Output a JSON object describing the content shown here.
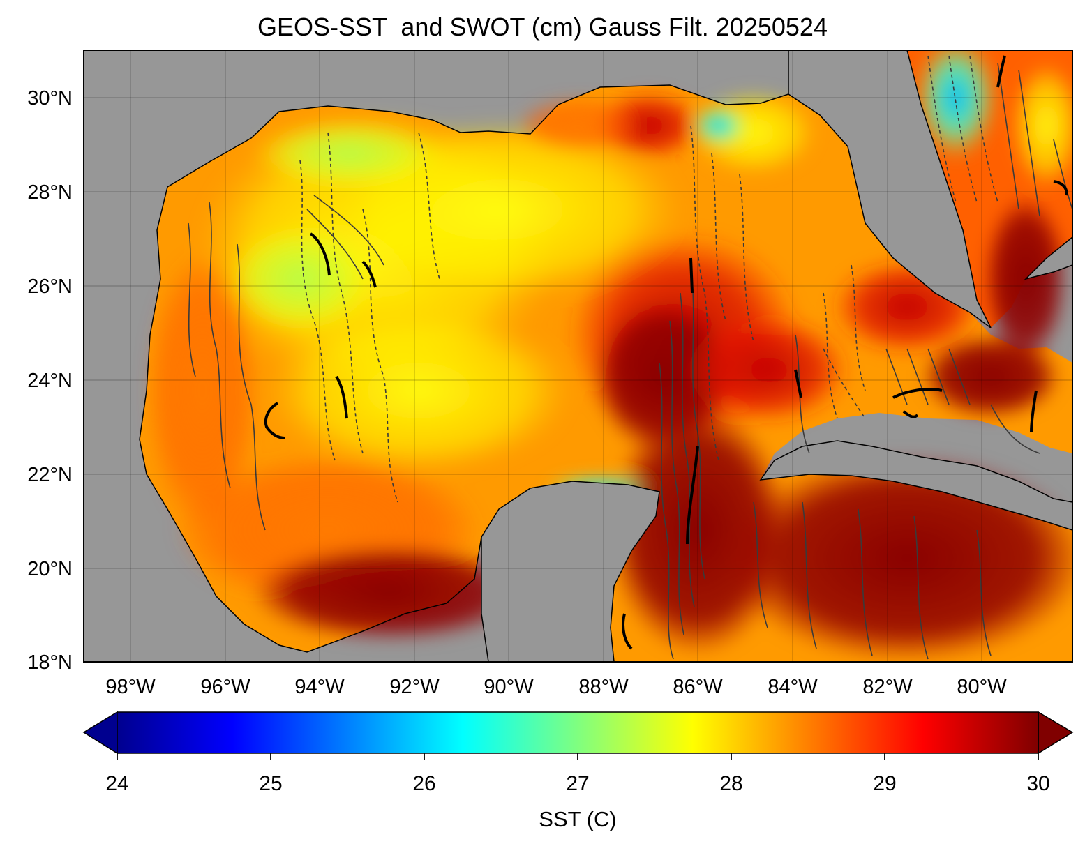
{
  "title": "GEOS-SST  and SWOT (cm) Gauss Filt. 20250524",
  "map": {
    "lon_range": [
      -99,
      -78.1
    ],
    "lat_range": [
      18,
      31
    ],
    "lon_ticks": [
      {
        "value": -98,
        "label": "98°W"
      },
      {
        "value": -96,
        "label": "96°W"
      },
      {
        "value": -94,
        "label": "94°W"
      },
      {
        "value": -92,
        "label": "92°W"
      },
      {
        "value": -90,
        "label": "90°W"
      },
      {
        "value": -88,
        "label": "88°W"
      },
      {
        "value": -86,
        "label": "86°W"
      },
      {
        "value": -84,
        "label": "84°W"
      },
      {
        "value": -82,
        "label": "82°W"
      },
      {
        "value": -80,
        "label": "80°W"
      }
    ],
    "lat_ticks": [
      {
        "value": 18,
        "label": "18°N"
      },
      {
        "value": 20,
        "label": "20°N"
      },
      {
        "value": 22,
        "label": "22°N"
      },
      {
        "value": 24,
        "label": "24°N"
      },
      {
        "value": 26,
        "label": "26°N"
      },
      {
        "value": 28,
        "label": "28°N"
      },
      {
        "value": 30,
        "label": "30°N"
      }
    ],
    "land_color": "#979797",
    "grid": true
  },
  "colorbar": {
    "label": "SST (C)",
    "min": 24,
    "max": 30,
    "extend": "both",
    "colormap": "jet",
    "ticks": [
      {
        "value": 24,
        "label": "24"
      },
      {
        "value": 25,
        "label": "25"
      },
      {
        "value": 26,
        "label": "26"
      },
      {
        "value": 27,
        "label": "27"
      },
      {
        "value": 28,
        "label": "28"
      },
      {
        "value": 29,
        "label": "29"
      },
      {
        "value": 30,
        "label": "30"
      }
    ]
  }
}
